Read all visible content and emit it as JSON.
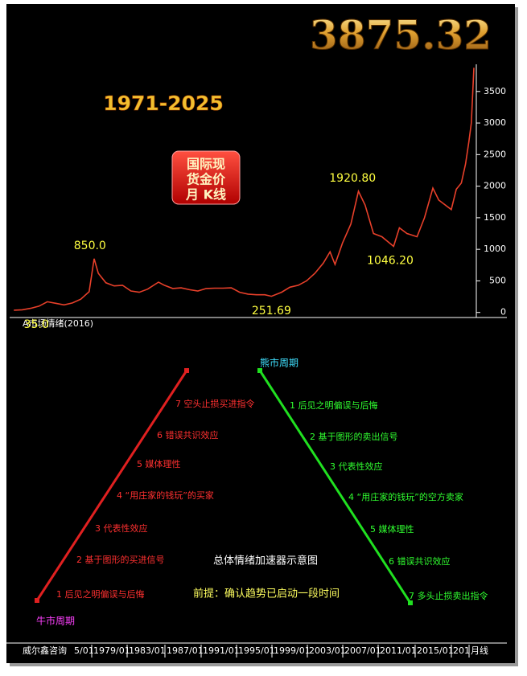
{
  "chart_data": {
    "type": "line",
    "title": "3875.32",
    "subtitle": "1971-2025",
    "badge": [
      "国际现",
      "货金价",
      "月 K线"
    ],
    "panel_label": "A市场情绪(2016)",
    "xlim": [
      1970,
      2025.6
    ],
    "ylim": [
      -80,
      3930
    ],
    "yticks": [
      0,
      500,
      1000,
      1500,
      2000,
      2500,
      3000,
      3500
    ],
    "series": [
      {
        "color": "#e8402a",
        "x": [
          1970.5,
          1971.5,
          1972.5,
          1973.5,
          1974.5,
          1975.5,
          1976.5,
          1977.5,
          1978.5,
          1979.5,
          1980.1,
          1980.6,
          1981.5,
          1982.5,
          1983.5,
          1984.5,
          1985.5,
          1986.5,
          1987.8,
          1988.5,
          1989.5,
          1990.5,
          1991.5,
          1992.5,
          1993.5,
          1994.5,
          1995.5,
          1996.5,
          1997.5,
          1998.5,
          1999.5,
          2000.5,
          2001.3,
          2002.5,
          2003.5,
          2004.5,
          2005.5,
          2006.5,
          2007.5,
          2008.3,
          2008.9,
          2009.8,
          2010.8,
          2011.7,
          2012.5,
          2013.5,
          2014.5,
          2015.9,
          2016.6,
          2017.5,
          2018.7,
          2019.6,
          2020.6,
          2021.3,
          2022.8,
          2023.4,
          2024.0,
          2024.5,
          2024.9,
          2025.2,
          2025.5
        ],
        "values": [
          36,
          42,
          65,
          100,
          170,
          145,
          120,
          150,
          210,
          330,
          850,
          620,
          470,
          420,
          430,
          340,
          320,
          370,
          480,
          430,
          380,
          390,
          360,
          340,
          380,
          385,
          385,
          390,
          320,
          290,
          280,
          280,
          256,
          320,
          400,
          430,
          500,
          620,
          780,
          960,
          760,
          1100,
          1400,
          1920,
          1700,
          1250,
          1200,
          1046,
          1340,
          1250,
          1200,
          1500,
          1970,
          1780,
          1630,
          1950,
          2050,
          2350,
          2700,
          3000,
          3875
        ]
      }
    ],
    "annotations": [
      {
        "x": 1973.2,
        "value": 35,
        "label": "35.0"
      },
      {
        "x": 1979.6,
        "value": 850,
        "label": "850.0"
      },
      {
        "x": 2001.3,
        "value": 251.69,
        "label": "251.69"
      },
      {
        "x": 2011.0,
        "value": 1920.8,
        "label": "1920.80"
      },
      {
        "x": 2015.5,
        "value": 1046.2,
        "label": "1046.20"
      }
    ]
  },
  "diagram": {
    "bull_title": "牛市周期",
    "bear_title": "熊市周期",
    "bull_steps": [
      "1 后见之明偏误与后悔",
      "2 基于图形的买进信号",
      "3 代表性效应",
      "4 “用庄家的钱玩”的买家",
      "5 媒体理性",
      "6 错误共识效应",
      "7 空头止损买进指令"
    ],
    "bear_steps": [
      "1 后见之明偏误与后悔",
      "2 基于图形的卖出信号",
      "3 代表性效应",
      "4 “用庄家的钱玩”的空方卖家",
      "5 媒体理性",
      "6 错误共识效应",
      "7 多头止损卖出指令"
    ],
    "caption": "总体情绪加速器示意图",
    "premise": "前提：确认趋势已启动一段时间"
  },
  "footer": {
    "labels": [
      "威尔鑫咨询",
      "5/01",
      "1979/01",
      "1983/01",
      "1987/01",
      "1991/01",
      "1995/01",
      "1999/01",
      "2003/01",
      "2007/01",
      "2011/01",
      "2015/01",
      "201",
      "月线"
    ]
  }
}
